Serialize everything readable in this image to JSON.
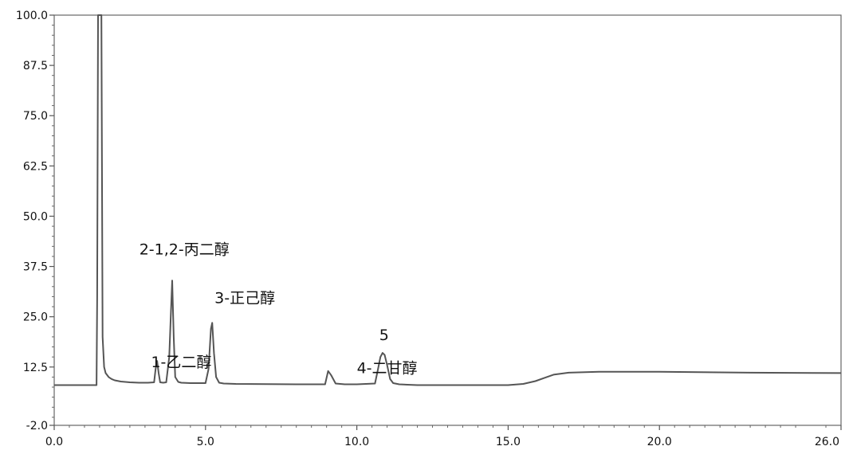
{
  "chart_data": {
    "type": "line",
    "title": "",
    "xlabel": "",
    "ylabel": "",
    "xlim": [
      0.0,
      26.0
    ],
    "ylim": [
      -2.0,
      100.0
    ],
    "grid": false,
    "x_ticks": [
      0.0,
      5.0,
      10.0,
      15.0,
      20.0,
      26.0
    ],
    "x_tick_labels": [
      "0.0",
      "5.0",
      "10.0",
      "15.0",
      "20.0",
      "26.0"
    ],
    "y_ticks": [
      -2.0,
      12.5,
      25.0,
      37.5,
      50.0,
      62.5,
      75.0,
      87.5,
      100.0
    ],
    "y_tick_labels": [
      "-2.0",
      "12.5",
      "25.0",
      "37.5",
      "50.0",
      "62.5",
      "75.0",
      "87.5",
      "100.0"
    ],
    "line_color": "#555555",
    "series": [
      {
        "x": [
          0.0,
          1.4,
          1.42,
          1.45,
          1.5,
          1.53,
          1.56,
          1.6,
          1.65,
          1.7,
          1.8,
          1.9,
          2.0,
          2.2,
          2.5,
          2.8,
          3.1,
          3.3,
          3.35,
          3.4,
          3.45,
          3.5,
          3.6,
          3.7,
          3.8,
          3.85,
          3.9,
          3.95,
          4.0,
          4.1,
          4.2,
          4.5,
          5.0,
          5.1,
          5.18,
          5.22,
          5.28,
          5.35,
          5.45,
          5.6,
          6.0,
          8.0,
          8.95,
          9.05,
          9.15,
          9.3,
          9.6,
          10.0,
          10.6,
          10.7,
          10.78,
          10.85,
          10.92,
          11.0,
          11.1,
          11.2,
          11.4,
          12.0,
          15.0,
          15.5,
          15.9,
          16.2,
          16.5,
          17.0,
          18.0,
          20.0,
          23.0,
          26.0
        ],
        "y": [
          8.0,
          8.0,
          30.0,
          100.0,
          100.0,
          100.0,
          100.0,
          20.0,
          12.5,
          11.0,
          10.0,
          9.5,
          9.2,
          8.9,
          8.7,
          8.6,
          8.6,
          8.7,
          12.0,
          14.0,
          11.0,
          8.7,
          8.6,
          8.7,
          15.0,
          25.0,
          34.0,
          20.0,
          10.0,
          8.8,
          8.6,
          8.5,
          8.5,
          12.0,
          22.0,
          23.5,
          16.0,
          10.0,
          8.6,
          8.4,
          8.3,
          8.2,
          8.2,
          11.5,
          10.5,
          8.4,
          8.2,
          8.2,
          8.4,
          12.0,
          15.0,
          16.0,
          15.5,
          13.0,
          9.5,
          8.5,
          8.2,
          8.0,
          8.0,
          8.3,
          9.0,
          9.8,
          10.6,
          11.1,
          11.3,
          11.3,
          11.1,
          11.0
        ]
      }
    ],
    "annotations": [
      {
        "text": "1-乙二醇",
        "x": 4.2,
        "y": 12.5
      },
      {
        "text": "2-1,2-丙二醇",
        "x": 4.3,
        "y": 40.5
      },
      {
        "text": "3-正己醇",
        "x": 6.3,
        "y": 28.4
      },
      {
        "text": "5",
        "x": 10.9,
        "y": 19.2
      },
      {
        "text": "4-二甘醇",
        "x": 11.0,
        "y": 11.0
      }
    ]
  }
}
